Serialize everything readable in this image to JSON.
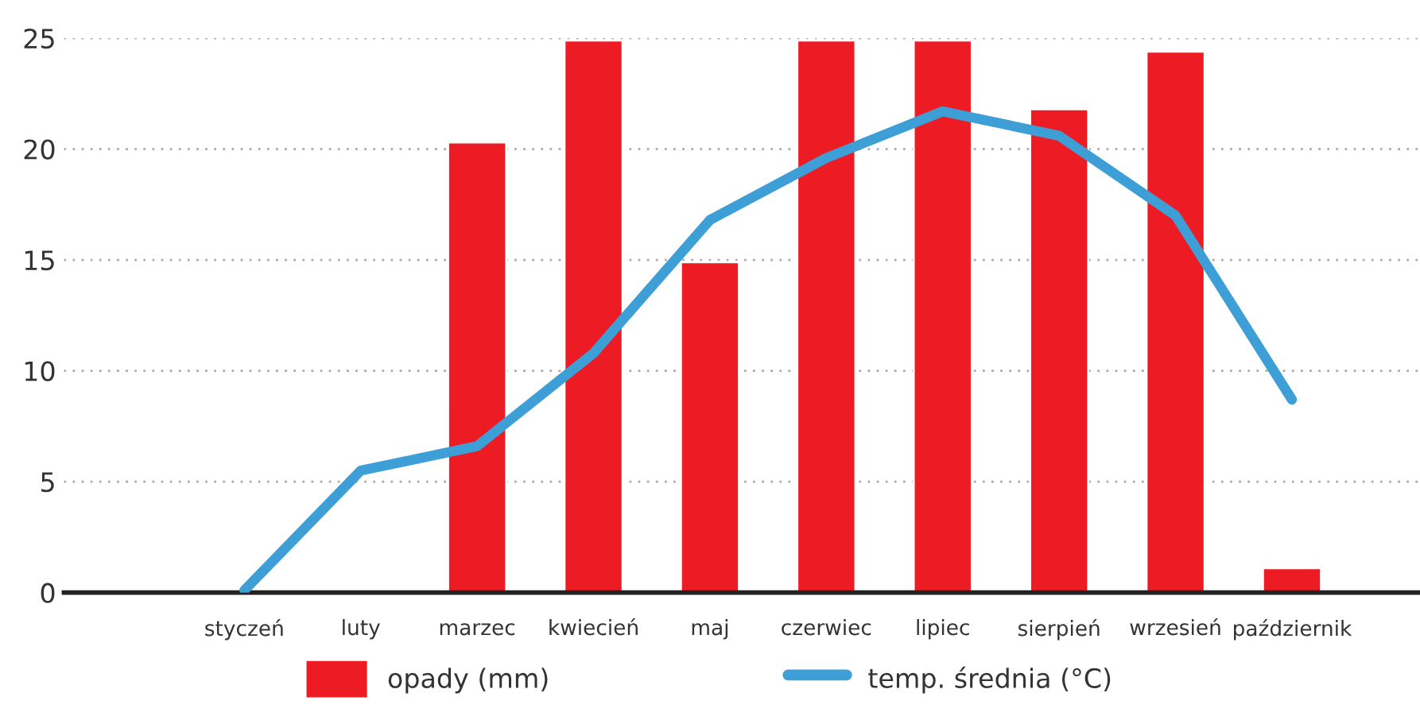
{
  "chart_data": {
    "type": "bar",
    "categories": [
      "styczeń",
      "luty",
      "marzec",
      "kwiecień",
      "maj",
      "czerwiec",
      "lipiec",
      "sierpień",
      "wrzesień",
      "październik"
    ],
    "series": [
      {
        "name": "opady (mm)",
        "color": "#ed1c24",
        "values": [
          null,
          null,
          20.3,
          24.9,
          14.9,
          24.9,
          24.9,
          21.8,
          24.4,
          1.1
        ]
      },
      {
        "name": "temp. średnia (°C)",
        "type": "line",
        "color": "#3d9fd6",
        "values": [
          0.1,
          5.5,
          6.6,
          10.8,
          16.8,
          19.6,
          21.7,
          20.6,
          17.0,
          8.7
        ]
      }
    ],
    "ylim": [
      0,
      25
    ],
    "yticks": [
      0,
      5,
      10,
      15,
      20,
      25
    ],
    "grid": "y",
    "legend": "bottom",
    "marker": "none",
    "line_style": "solid"
  }
}
